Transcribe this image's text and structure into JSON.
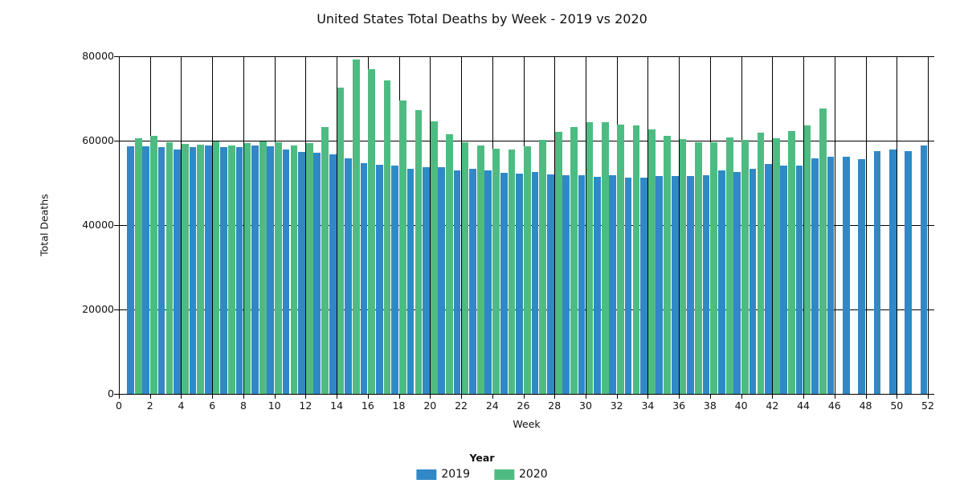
{
  "title": "United States Total Deaths by Week - 2019 vs 2020",
  "colors": {
    "series_2019": "#3089C6",
    "series_2020": "#4EBC82",
    "axis": "#000000",
    "text": "#111111",
    "background": "#ffffff"
  },
  "legend": {
    "title": "Year",
    "items": [
      {
        "label": "2019",
        "color": "#3089C6"
      },
      {
        "label": "2020",
        "color": "#4EBC82"
      }
    ]
  },
  "chart_data": {
    "type": "bar",
    "title": "United States Total Deaths by Week - 2019 vs 2020",
    "xlabel": "Week",
    "ylabel": "Total Deaths",
    "ylim": [
      0,
      80000
    ],
    "xlim": [
      0,
      52.4
    ],
    "yticks": [
      0,
      20000,
      40000,
      60000,
      80000
    ],
    "xticks": [
      0,
      2,
      4,
      6,
      8,
      10,
      12,
      14,
      16,
      18,
      20,
      22,
      24,
      26,
      28,
      30,
      32,
      34,
      36,
      38,
      40,
      42,
      44,
      46,
      48,
      50,
      52
    ],
    "grid": "both",
    "legend_position": "bottom",
    "x": [
      1,
      2,
      3,
      4,
      5,
      6,
      7,
      8,
      9,
      10,
      11,
      12,
      13,
      14,
      15,
      16,
      17,
      18,
      19,
      20,
      21,
      22,
      23,
      24,
      25,
      26,
      27,
      28,
      29,
      30,
      31,
      32,
      33,
      34,
      35,
      36,
      37,
      38,
      39,
      40,
      41,
      42,
      43,
      44,
      45,
      46,
      47,
      48,
      49,
      50,
      51,
      52
    ],
    "series": [
      {
        "name": "2019",
        "color": "#3089C6",
        "values": [
          58700,
          58700,
          58500,
          58000,
          58500,
          58800,
          58400,
          58500,
          58900,
          58700,
          58000,
          57400,
          57100,
          56800,
          55900,
          54700,
          54200,
          54100,
          53400,
          53700,
          53700,
          52900,
          53400,
          52900,
          52400,
          52200,
          52600,
          52000,
          51900,
          51900,
          51500,
          51800,
          51200,
          51200,
          51600,
          51700,
          51600,
          51900,
          52900,
          52600,
          53300,
          54500,
          54100,
          54100,
          55800,
          56100,
          56200,
          55700,
          57500,
          57900,
          57600,
          58800
        ]
      },
      {
        "name": "2020",
        "color": "#4EBC82",
        "values": [
          60500,
          61100,
          59600,
          59300,
          59100,
          59800,
          58900,
          59400,
          59900,
          59700,
          58900,
          59400,
          63300,
          72500,
          79300,
          77000,
          74200,
          69600,
          67200,
          64600,
          61600,
          59700,
          58900,
          58100,
          58000,
          58600,
          60100,
          62100,
          63200,
          64300,
          64300,
          63900,
          63700,
          62600,
          61100,
          60300,
          59600,
          59700,
          60700,
          60100,
          61900,
          60600,
          62300,
          63700,
          67600
        ]
      }
    ]
  }
}
